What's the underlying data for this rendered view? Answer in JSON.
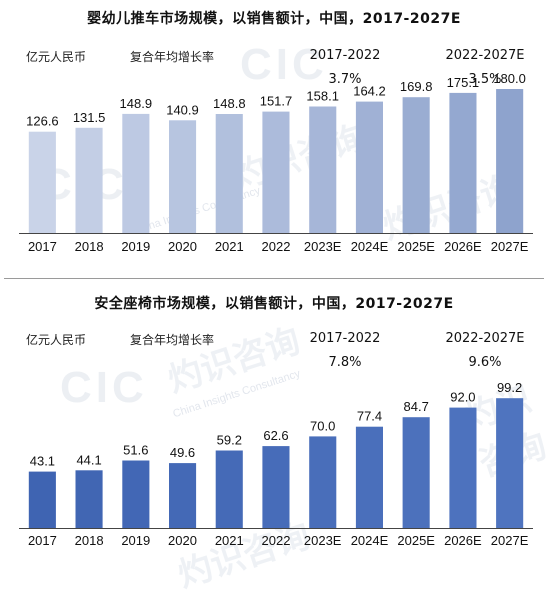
{
  "watermark": {
    "logo": "CIC",
    "cn": "灼识咨询",
    "en": "China Insights Consultancy"
  },
  "charts": [
    {
      "title": "婴幼儿推车市场规模，以销售额计，中国，2017-2027E",
      "unit": "亿元人民币",
      "cagr_label": "复合年均增长率",
      "cagr": [
        {
          "period": "2017-2022",
          "value": "3.7%"
        },
        {
          "period": "2022-2027E",
          "value": "3.5%"
        }
      ]
    },
    {
      "title": "安全座椅市场规模，以销售额计，中国，2017-2027E",
      "unit": "亿元人民币",
      "cagr_label": "复合年均增长率",
      "cagr": [
        {
          "period": "2017-2022",
          "value": "7.8%"
        },
        {
          "period": "2022-2027E",
          "value": "9.6%"
        }
      ]
    }
  ],
  "chart_data": [
    {
      "type": "bar",
      "title": "婴幼儿推车市场规模，以销售额计，中国，2017-2027E",
      "ylabel": "亿元人民币",
      "categories": [
        "2017",
        "2018",
        "2019",
        "2020",
        "2021",
        "2022",
        "2023E",
        "2024E",
        "2025E",
        "2026E",
        "2027E"
      ],
      "values": [
        126.6,
        131.5,
        148.9,
        140.9,
        148.8,
        151.7,
        158.1,
        164.2,
        169.8,
        175.1,
        180.0
      ],
      "value_labels": [
        "126.6",
        "131.5",
        "148.9",
        "140.9",
        "148.8",
        "151.7",
        "158.1",
        "164.2",
        "169.8",
        "175.1",
        "180.0"
      ],
      "colors": {
        "start": "#c9d3e8",
        "end": "#8ea3cd"
      },
      "ylim": [
        0,
        200
      ],
      "grid": false
    },
    {
      "type": "bar",
      "title": "安全座椅市场规模，以销售额计，中国，2017-2027E",
      "ylabel": "亿元人民币",
      "categories": [
        "2017",
        "2018",
        "2019",
        "2020",
        "2021",
        "2022",
        "2023E",
        "2024E",
        "2025E",
        "2026E",
        "2027E"
      ],
      "values": [
        43.1,
        44.1,
        51.6,
        49.6,
        59.2,
        62.6,
        70.0,
        77.4,
        84.7,
        92.0,
        99.2
      ],
      "value_labels": [
        "43.1",
        "44.1",
        "51.6",
        "49.6",
        "59.2",
        "62.6",
        "70.0",
        "77.4",
        "84.7",
        "92.0",
        "99.2"
      ],
      "colors": {
        "start": "#3f64b2",
        "end": "#4f74bf"
      },
      "ylim": [
        0,
        120
      ],
      "grid": false
    }
  ]
}
